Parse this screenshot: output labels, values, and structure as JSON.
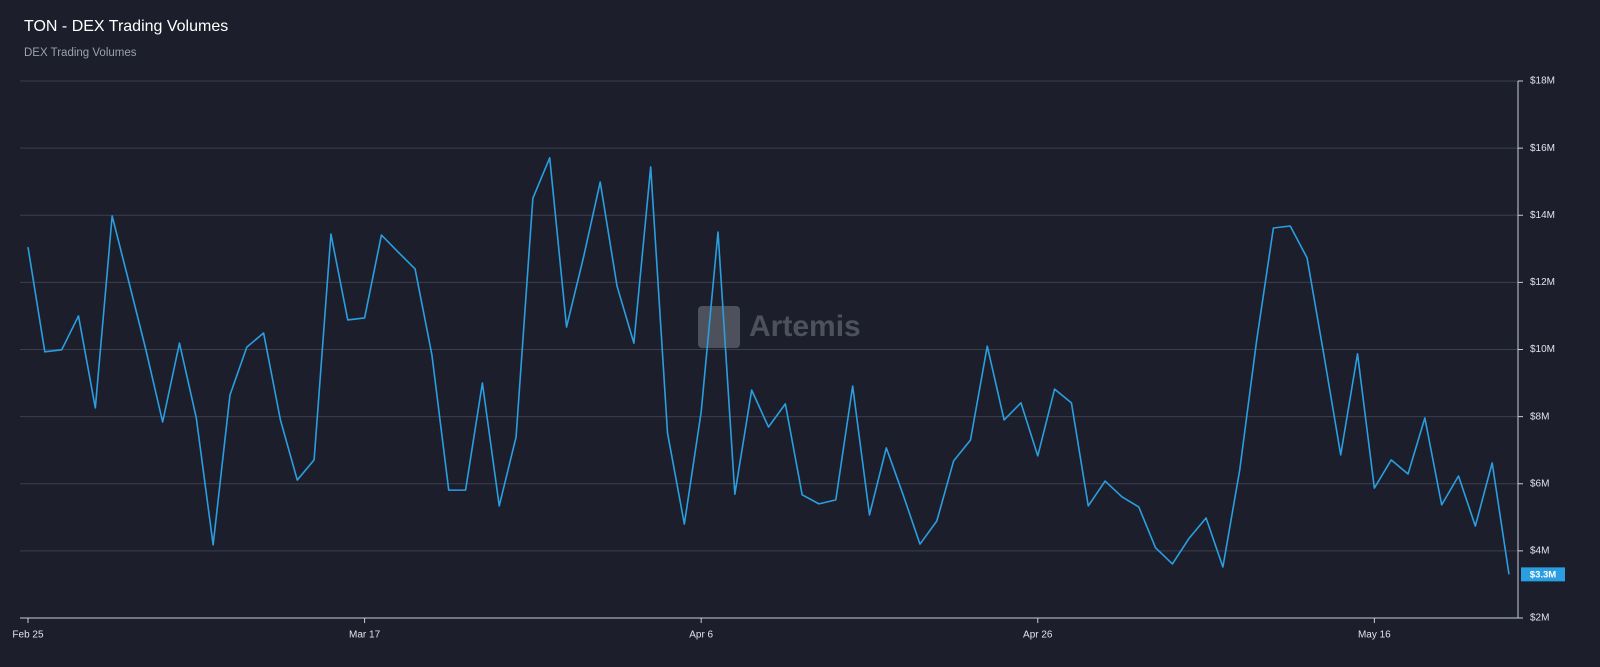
{
  "chart_data": {
    "type": "line",
    "title": "TON - DEX Trading Volumes",
    "subtitle": "DEX Trading Volumes",
    "watermark": "Artemis",
    "categories": [
      "Feb 25",
      null,
      null,
      null,
      null,
      null,
      null,
      null,
      null,
      null,
      null,
      null,
      null,
      null,
      null,
      null,
      null,
      null,
      null,
      null,
      "Mar 17",
      null,
      null,
      null,
      null,
      null,
      null,
      null,
      null,
      null,
      null,
      null,
      null,
      null,
      null,
      null,
      null,
      null,
      null,
      null,
      "Apr 6",
      null,
      null,
      null,
      null,
      null,
      null,
      null,
      null,
      null,
      null,
      null,
      null,
      null,
      null,
      null,
      null,
      null,
      null,
      null,
      "Apr 26",
      null,
      null,
      null,
      null,
      null,
      null,
      null,
      null,
      null,
      null,
      null,
      null,
      null,
      null,
      null,
      null,
      null,
      null,
      null,
      "May 16",
      null,
      null,
      null,
      null,
      null,
      null,
      null,
      null
    ],
    "series": [
      {
        "name": "DEX Trading Volumes",
        "color": "#2a9ee0",
        "values": [
          13.05,
          9.93,
          9.99,
          11.0,
          8.26,
          13.98,
          12.0,
          10.0,
          7.84,
          10.19,
          7.96,
          4.18,
          8.64,
          10.07,
          10.49,
          7.9,
          6.11,
          6.71,
          13.44,
          10.88,
          10.94,
          13.41,
          12.9,
          12.4,
          9.84,
          5.81,
          5.81,
          9.0,
          5.34,
          7.39,
          14.51,
          15.71,
          10.67,
          12.73,
          14.99,
          11.89,
          10.19,
          15.44,
          7.51,
          4.8,
          8.14,
          13.5,
          5.69,
          8.79,
          7.69,
          8.38,
          5.67,
          5.4,
          5.52,
          8.91,
          5.07,
          7.07,
          5.67,
          4.2,
          4.89,
          6.68,
          7.3,
          10.1,
          7.9,
          8.41,
          6.83,
          8.82,
          8.41,
          5.34,
          6.08,
          5.61,
          5.31,
          4.09,
          3.61,
          4.38,
          4.98,
          3.52,
          6.41,
          10.25,
          13.62,
          13.68,
          12.73,
          9.84,
          6.86,
          9.87,
          5.87,
          6.71,
          6.29,
          7.96,
          5.37,
          6.23,
          4.74,
          6.62,
          3.3
        ],
        "value_labels": [
          null,
          null,
          null,
          null,
          null,
          null,
          null,
          null,
          null,
          null,
          null,
          null,
          null,
          null,
          null,
          null,
          null,
          null,
          null,
          null,
          null,
          null,
          null,
          null,
          null,
          null,
          null,
          null,
          null,
          null,
          null,
          null,
          null,
          null,
          null,
          null,
          null,
          null,
          null,
          null,
          null,
          null,
          null,
          null,
          null,
          null,
          null,
          null,
          null,
          null,
          null,
          null,
          null,
          null,
          null,
          null,
          null,
          null,
          null,
          null,
          null,
          null,
          null,
          null,
          null,
          null,
          null,
          null,
          null,
          null,
          null,
          null,
          null,
          null,
          null,
          null,
          null,
          null,
          null,
          null,
          null,
          null,
          null,
          null,
          null,
          null,
          null,
          null,
          "$3.3M"
        ]
      }
    ],
    "ylim": [
      2,
      18
    ],
    "yticks": [
      {
        "value": 2,
        "label": "$2M"
      },
      {
        "value": 4,
        "label": "$4M"
      },
      {
        "value": 6,
        "label": "$6M"
      },
      {
        "value": 8,
        "label": "$8M"
      },
      {
        "value": 10,
        "label": "$10M"
      },
      {
        "value": 12,
        "label": "$12M"
      },
      {
        "value": 14,
        "label": "$14M"
      },
      {
        "value": 16,
        "label": "$16M"
      },
      {
        "value": 18,
        "label": "$18M"
      }
    ],
    "grid": true
  }
}
